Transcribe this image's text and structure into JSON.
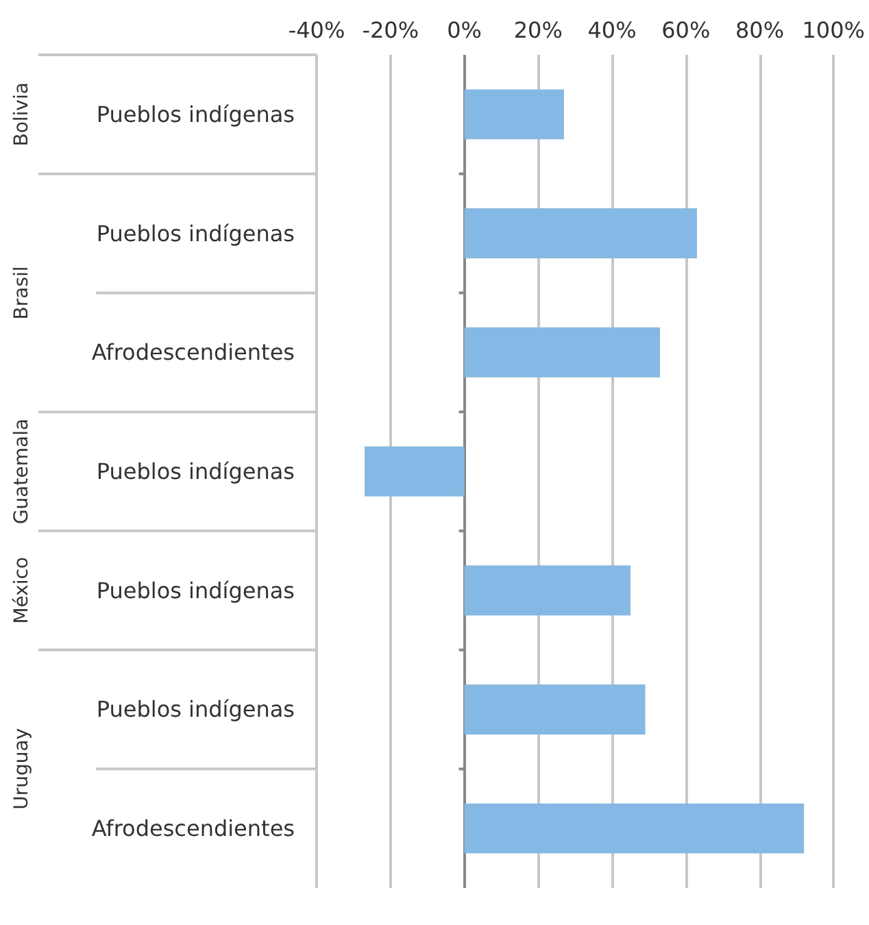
{
  "chart_data": {
    "type": "bar",
    "orientation": "horizontal",
    "categories": [
      "Pueblos indígenas",
      "Pueblos indígenas",
      "Afrodescendientes",
      "Pueblos indígenas",
      "Pueblos indígenas",
      "Pueblos indígenas",
      "Afrodescendientes"
    ],
    "values": [
      27,
      63,
      53,
      -27,
      45,
      49,
      92
    ],
    "color": "#85b9e5",
    "xlim": [
      -40,
      100
    ],
    "xticks": [
      {
        "value": -40,
        "label": "-40%"
      },
      {
        "value": -20,
        "label": "-20%"
      },
      {
        "value": 0,
        "label": "0%"
      },
      {
        "value": 20,
        "label": "20%"
      },
      {
        "value": 40,
        "label": "40%"
      },
      {
        "value": 60,
        "label": "60%"
      },
      {
        "value": 80,
        "label": "80%"
      },
      {
        "value": 100,
        "label": "100%"
      }
    ],
    "grid": "x",
    "annotations": [
      "Bolivia",
      "Brasil",
      "Guatemala",
      "México",
      "Uruguay"
    ]
  }
}
